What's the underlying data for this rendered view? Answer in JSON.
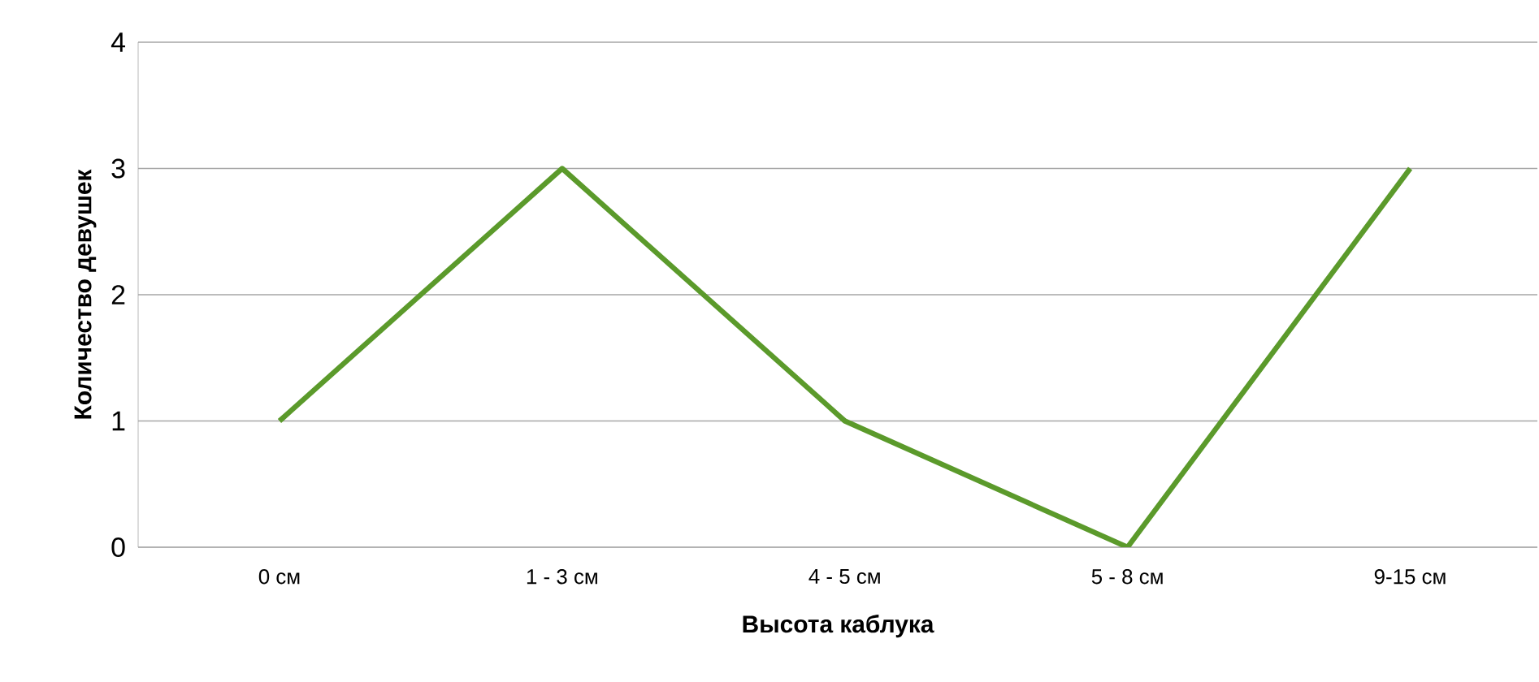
{
  "chart_data": {
    "type": "line",
    "xlabel": "Высота каблука",
    "ylabel": "Количество девушек",
    "categories": [
      "0 см",
      "1 - 3 см",
      "4 - 5 см",
      "5 - 8 см",
      "9-15 см"
    ],
    "series": [
      {
        "color": "#5b9a2b",
        "values": [
          1,
          3,
          1,
          0,
          3
        ]
      }
    ],
    "ylim": [
      0,
      4
    ],
    "yticks": [
      0,
      1,
      2,
      3,
      4
    ],
    "grid": "y",
    "marker": "none",
    "line_style": "solid"
  }
}
